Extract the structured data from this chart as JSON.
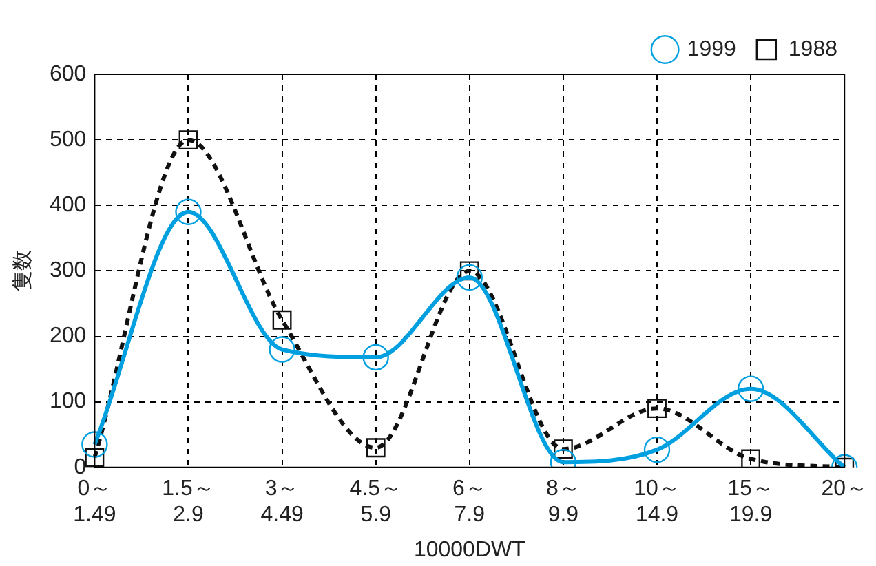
{
  "chart_data": {
    "type": "line",
    "xlabel": "10000DWT",
    "ylabel": "隻数",
    "categories": [
      "0～1.49",
      "1.5～2.9",
      "3～4.49",
      "4.5～5.9",
      "6～7.9",
      "8～9.9",
      "10～14.9",
      "15～19.9",
      "20～"
    ],
    "series": [
      {
        "name": "1999",
        "color": "#00a0e0",
        "marker": "circle",
        "line_style": "solid",
        "values": [
          35,
          390,
          180,
          168,
          290,
          8,
          27,
          120,
          0
        ]
      },
      {
        "name": "1988",
        "color": "#111111",
        "marker": "square",
        "line_style": "dashed",
        "values": [
          15,
          500,
          225,
          30,
          300,
          28,
          90,
          13,
          0
        ]
      }
    ],
    "ylim": [
      0,
      600
    ],
    "yticks": [
      0,
      100,
      200,
      300,
      400,
      500,
      600
    ],
    "grid": true,
    "legend": "top right"
  }
}
